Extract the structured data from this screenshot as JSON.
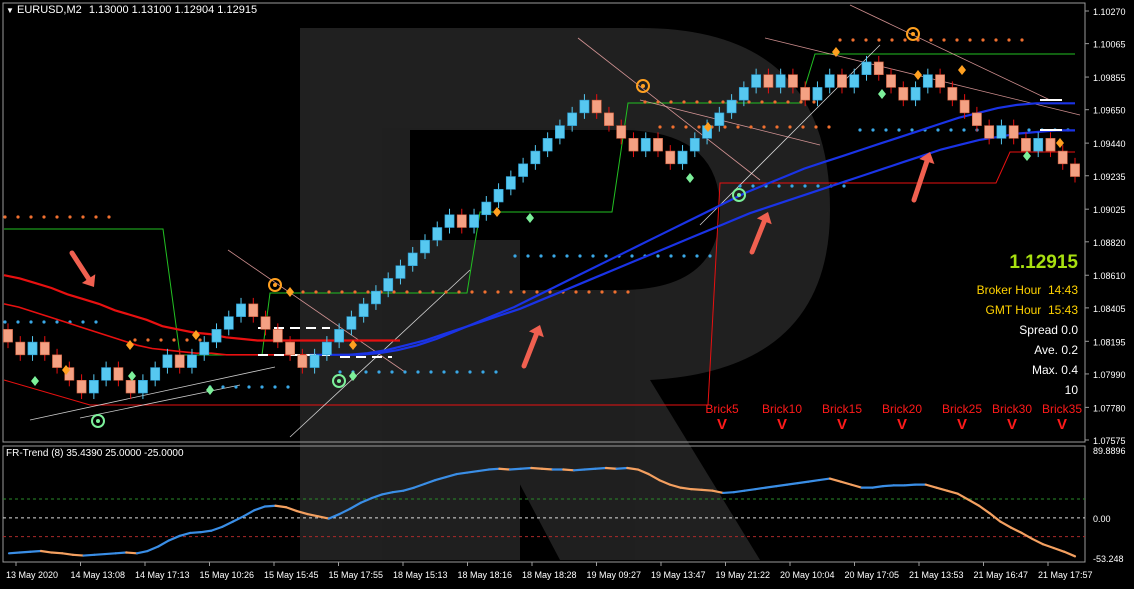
{
  "colors": {
    "bg": "#000000",
    "grid": "#2a2a2a",
    "frame": "#9a9a9a",
    "bull": "#56c8f0",
    "bear": "#f4a183",
    "ma_red": "#e81010",
    "ma_blue": "#1a33e6",
    "green": "#22c022",
    "step_red": "#e81010",
    "orange": "#ffa020",
    "dots_blue": "#3aa8e6",
    "dots_orange": "#f07030",
    "trend_up": "#3a8ee6",
    "trend_down": "#f4a060",
    "price_text": "#a8e010",
    "info_yellow": "#ffd200",
    "brick_red": "#ff1a1a",
    "watermark": "#3a3a3a",
    "arrow": "#f06050"
  },
  "header": {
    "symbol": "EURUSD,M2",
    "ohlc": "1.13000 1.13100 1.12904 1.12915"
  },
  "price_axis": [
    "1.10270",
    "1.10065",
    "1.09855",
    "1.09650",
    "1.09440",
    "1.09235",
    "1.09025",
    "1.08820",
    "1.08610",
    "1.08405",
    "1.08195",
    "1.07990",
    "1.07780",
    "1.07575"
  ],
  "time_axis": [
    "13 May 2020",
    "14 May 13:08",
    "14 May 17:13",
    "15 May 10:26",
    "15 May 15:45",
    "15 May 17:55",
    "18 May 15:13",
    "18 May 18:16",
    "18 May 18:28",
    "19 May 09:27",
    "19 May 13:47",
    "19 May 21:22",
    "20 May 10:04",
    "20 May 17:05",
    "21 May 13:53",
    "21 May 16:47",
    "21 May 17:57"
  ],
  "info": {
    "price": "1.12915",
    "broker_label": "Broker Hour",
    "broker_value": "14:43",
    "gmt_label": "GMT Hour",
    "gmt_value": "15:43",
    "spread": "Spread 0.0",
    "ave": "Ave. 0.2",
    "max": "Max. 0.4",
    "count": "10"
  },
  "bricks": [
    {
      "label": "Brick5",
      "mark": "V"
    },
    {
      "label": "Brick10",
      "mark": "V"
    },
    {
      "label": "Brick15",
      "mark": "V"
    },
    {
      "label": "Brick20",
      "mark": "V"
    },
    {
      "label": "Brick25",
      "mark": "V"
    },
    {
      "label": "Brick30",
      "mark": "V"
    },
    {
      "label": "Brick35",
      "mark": "V"
    }
  ],
  "indicator": {
    "title": "FR-Trend (8) 35.4390 25.0000 -25.0000",
    "axis": [
      "89.8896",
      "0.00",
      "-53.248"
    ],
    "levels": [
      25,
      0,
      -25
    ],
    "ylim": [
      -53.248,
      89.8896
    ]
  },
  "chart_data": {
    "type": "candlestick",
    "title": "EURUSD,M2",
    "ylim": [
      1.07575,
      1.1027
    ],
    "bricks": [
      {
        "o": 1.0827,
        "c": 1.0819
      },
      {
        "o": 1.0819,
        "c": 1.0811
      },
      {
        "o": 1.0811,
        "c": 1.0819
      },
      {
        "o": 1.0819,
        "c": 1.0811
      },
      {
        "o": 1.0811,
        "c": 1.0803
      },
      {
        "o": 1.0803,
        "c": 1.0795
      },
      {
        "o": 1.0795,
        "c": 1.0787
      },
      {
        "o": 1.0787,
        "c": 1.0795
      },
      {
        "o": 1.0795,
        "c": 1.0803
      },
      {
        "o": 1.0803,
        "c": 1.0795
      },
      {
        "o": 1.0795,
        "c": 1.0787
      },
      {
        "o": 1.0787,
        "c": 1.0795
      },
      {
        "o": 1.0795,
        "c": 1.0803
      },
      {
        "o": 1.0803,
        "c": 1.0811
      },
      {
        "o": 1.0811,
        "c": 1.0803
      },
      {
        "o": 1.0803,
        "c": 1.0811
      },
      {
        "o": 1.0811,
        "c": 1.0819
      },
      {
        "o": 1.0819,
        "c": 1.0827
      },
      {
        "o": 1.0827,
        "c": 1.0835
      },
      {
        "o": 1.0835,
        "c": 1.0843
      },
      {
        "o": 1.0843,
        "c": 1.0835
      },
      {
        "o": 1.0835,
        "c": 1.0827
      },
      {
        "o": 1.0827,
        "c": 1.0819
      },
      {
        "o": 1.0819,
        "c": 1.0811
      },
      {
        "o": 1.0811,
        "c": 1.0803
      },
      {
        "o": 1.0803,
        "c": 1.0811
      },
      {
        "o": 1.0811,
        "c": 1.0819
      },
      {
        "o": 1.0819,
        "c": 1.0827
      },
      {
        "o": 1.0827,
        "c": 1.0835
      },
      {
        "o": 1.0835,
        "c": 1.0843
      },
      {
        "o": 1.0843,
        "c": 1.0851
      },
      {
        "o": 1.0851,
        "c": 1.0859
      },
      {
        "o": 1.0859,
        "c": 1.0867
      },
      {
        "o": 1.0867,
        "c": 1.0875
      },
      {
        "o": 1.0875,
        "c": 1.0883
      },
      {
        "o": 1.0883,
        "c": 1.0891
      },
      {
        "o": 1.0891,
        "c": 1.0899
      },
      {
        "o": 1.0899,
        "c": 1.0891
      },
      {
        "o": 1.0891,
        "c": 1.0899
      },
      {
        "o": 1.0899,
        "c": 1.0907
      },
      {
        "o": 1.0907,
        "c": 1.0915
      },
      {
        "o": 1.0915,
        "c": 1.0923
      },
      {
        "o": 1.0923,
        "c": 1.0931
      },
      {
        "o": 1.0931,
        "c": 1.0939
      },
      {
        "o": 1.0939,
        "c": 1.0947
      },
      {
        "o": 1.0947,
        "c": 1.0955
      },
      {
        "o": 1.0955,
        "c": 1.0963
      },
      {
        "o": 1.0963,
        "c": 1.0971
      },
      {
        "o": 1.0971,
        "c": 1.0963
      },
      {
        "o": 1.0963,
        "c": 1.0955
      },
      {
        "o": 1.0955,
        "c": 1.0947
      },
      {
        "o": 1.0947,
        "c": 1.0939
      },
      {
        "o": 1.0939,
        "c": 1.0947
      },
      {
        "o": 1.0947,
        "c": 1.0939
      },
      {
        "o": 1.0939,
        "c": 1.0931
      },
      {
        "o": 1.0931,
        "c": 1.0939
      },
      {
        "o": 1.0939,
        "c": 1.0947
      },
      {
        "o": 1.0947,
        "c": 1.0955
      },
      {
        "o": 1.0955,
        "c": 1.0963
      },
      {
        "o": 1.0963,
        "c": 1.0971
      },
      {
        "o": 1.0971,
        "c": 1.0979
      },
      {
        "o": 1.0979,
        "c": 1.0987
      },
      {
        "o": 1.0987,
        "c": 1.0979
      },
      {
        "o": 1.0979,
        "c": 1.0987
      },
      {
        "o": 1.0987,
        "c": 1.0979
      },
      {
        "o": 1.0979,
        "c": 1.0971
      },
      {
        "o": 1.0971,
        "c": 1.0979
      },
      {
        "o": 1.0979,
        "c": 1.0987
      },
      {
        "o": 1.0987,
        "c": 1.0979
      },
      {
        "o": 1.0979,
        "c": 1.0987
      },
      {
        "o": 1.0987,
        "c": 1.0995
      },
      {
        "o": 1.0995,
        "c": 1.0987
      },
      {
        "o": 1.0987,
        "c": 1.0979
      },
      {
        "o": 1.0979,
        "c": 1.0971
      },
      {
        "o": 1.0971,
        "c": 1.0979
      },
      {
        "o": 1.0979,
        "c": 1.0987
      },
      {
        "o": 1.0987,
        "c": 1.0979
      },
      {
        "o": 1.0979,
        "c": 1.0971
      },
      {
        "o": 1.0971,
        "c": 1.0963
      },
      {
        "o": 1.0963,
        "c": 1.0955
      },
      {
        "o": 1.0955,
        "c": 1.0947
      },
      {
        "o": 1.0947,
        "c": 1.0955
      },
      {
        "o": 1.0955,
        "c": 1.0947
      },
      {
        "o": 1.0947,
        "c": 1.0939
      },
      {
        "o": 1.0939,
        "c": 1.0947
      },
      {
        "o": 1.0947,
        "c": 1.0939
      },
      {
        "o": 1.0939,
        "c": 1.0931
      },
      {
        "o": 1.0931,
        "c": 1.0923
      }
    ],
    "series": [
      {
        "values": [
          1.0861,
          1.0859,
          1.0856,
          1.0853,
          1.0849,
          1.0846,
          1.0843,
          1.0839,
          1.0836,
          1.0833,
          1.0829,
          1.0827,
          1.0825,
          1.0824,
          1.0822,
          1.0821,
          1.082,
          1.082,
          1.082,
          1.082,
          1.082,
          1.082,
          1.082,
          1.082,
          1.082,
          1.082
        ]
      },
      {
        "values": [
          1.0843,
          1.0841,
          1.0838,
          1.0835,
          1.0832,
          1.0829,
          1.0826,
          1.0823,
          1.082,
          1.0817,
          1.0815,
          1.0814,
          1.0813,
          1.0812,
          1.0812,
          1.0811,
          1.0811,
          1.0811,
          1.0811,
          1.0811,
          1.0811,
          1.0811,
          1.0811
        ]
      },
      {
        "values": [
          1.0811,
          1.0811,
          1.0812,
          1.0814,
          1.0817,
          1.0821,
          1.0826,
          1.0831,
          1.0836,
          1.0841,
          1.0847,
          1.0853,
          1.0859,
          1.0865,
          1.0871,
          1.0877,
          1.0883,
          1.0889,
          1.0895,
          1.0901,
          1.0907,
          1.0913,
          1.0918,
          1.0923,
          1.0928,
          1.0932,
          1.0936,
          1.094,
          1.0944,
          1.0948,
          1.0952,
          1.0956,
          1.096,
          1.0963,
          1.0966,
          1.0968,
          1.0969,
          1.0969,
          1.0969
        ]
      },
      {
        "values": [
          1.0811,
          1.0811,
          1.0811,
          1.0812,
          1.0814,
          1.0817,
          1.082,
          1.0824,
          1.0828,
          1.0832,
          1.0836,
          1.084,
          1.0845,
          1.085,
          1.0855,
          1.086,
          1.0865,
          1.087,
          1.0875,
          1.088,
          1.0885,
          1.089,
          1.0895,
          1.09,
          1.0904,
          1.0908,
          1.0912,
          1.0916,
          1.092,
          1.0924,
          1.0928,
          1.0932,
          1.0936,
          1.094,
          1.0943,
          1.0946,
          1.0948,
          1.095,
          1.0951,
          1.0952,
          1.0952
        ]
      }
    ],
    "indicator_values": [
      -47,
      -46,
      -45,
      -44,
      -46,
      -47,
      -49,
      -50,
      -49,
      -48,
      -47,
      -46,
      -47,
      -44,
      -38,
      -30,
      -24,
      -20,
      -19,
      -17,
      -12,
      -5,
      2,
      10,
      15,
      16,
      14,
      9,
      5,
      2,
      -1,
      5,
      12,
      20,
      26,
      31,
      34,
      36,
      40,
      45,
      50,
      54,
      58,
      60,
      62,
      64,
      65,
      64,
      65,
      66,
      65,
      64,
      64,
      63,
      64,
      65,
      66,
      65,
      66,
      64,
      58,
      50,
      44,
      40,
      38,
      37,
      36,
      33,
      34,
      36,
      38,
      40,
      42,
      44,
      46,
      48,
      50,
      52,
      48,
      44,
      40,
      40,
      42,
      43,
      43,
      44,
      44,
      40,
      36,
      32,
      24,
      16,
      6,
      -5,
      -13,
      -20,
      -28,
      -35,
      -40,
      -45,
      -51
    ]
  }
}
